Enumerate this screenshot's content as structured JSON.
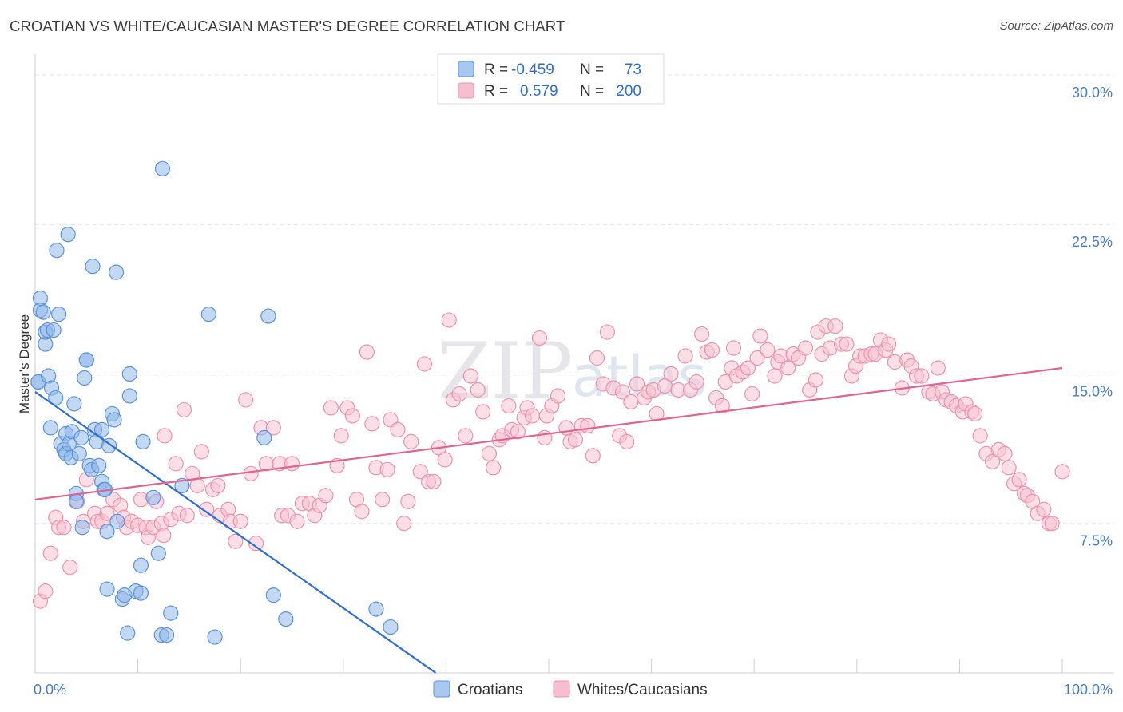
{
  "title": "CROATIAN VS WHITE/CAUCASIAN MASTER'S DEGREE CORRELATION CHART",
  "source": "Source: ZipAtlas.com",
  "watermark": {
    "zip": "ZIP",
    "atlas": "atlas"
  },
  "chart_data": {
    "type": "scatter",
    "title": "CROATIAN VS WHITE/CAUCASIAN MASTER'S DEGREE CORRELATION CHART",
    "ylabel": "Master's Degree",
    "xlabel": "",
    "xlim": [
      0,
      100
    ],
    "ylim": [
      0,
      30.6
    ],
    "x_tick_labels": {
      "left": "0.0%",
      "right": "100.0%"
    },
    "y_ticks": [
      {
        "value": 7.5,
        "label": "7.5%"
      },
      {
        "value": 15.0,
        "label": "15.0%"
      },
      {
        "value": 22.5,
        "label": "22.5%"
      },
      {
        "value": 30.0,
        "label": "30.0%"
      }
    ],
    "legend": {
      "placement": "top-center",
      "rows": [
        {
          "r_label": "R =",
          "r_value": "-0.459",
          "n_label": "N =",
          "n_value": "73",
          "color": "#a9c8f0"
        },
        {
          "r_label": "R =",
          "r_value": "0.579",
          "n_label": "N =",
          "n_value": "200",
          "color": "#f6bfd0"
        }
      ]
    },
    "series": [
      {
        "name": "Croatians",
        "color": "#8fb8ea",
        "edge": "#5d93da",
        "trend": {
          "x": [
            0,
            39
          ],
          "y": [
            14.1,
            0
          ],
          "color": "#2f6fd0"
        },
        "points": [
          [
            0.3,
            14.6
          ],
          [
            0.3,
            14.6
          ],
          [
            0.5,
            18.8
          ],
          [
            0.5,
            18.2
          ],
          [
            0.8,
            18.1
          ],
          [
            1,
            16.5
          ],
          [
            1,
            17.1
          ],
          [
            1.2,
            17.2
          ],
          [
            1.3,
            14.9
          ],
          [
            1.5,
            12.3
          ],
          [
            1.6,
            14.3
          ],
          [
            1.8,
            17.2
          ],
          [
            2,
            13.8
          ],
          [
            2.3,
            18
          ],
          [
            2.5,
            11.5
          ],
          [
            2.8,
            11.2
          ],
          [
            3,
            11.0
          ],
          [
            3,
            12.0
          ],
          [
            3.3,
            11.5
          ],
          [
            3.5,
            10.8
          ],
          [
            3.6,
            12.1
          ],
          [
            3.8,
            13.5
          ],
          [
            4,
            9.0
          ],
          [
            4,
            8.6
          ],
          [
            4.3,
            11.0
          ],
          [
            4.5,
            11.8
          ],
          [
            4.8,
            14.8
          ],
          [
            5,
            15.7
          ],
          [
            5.3,
            10.4
          ],
          [
            5.5,
            10.2
          ],
          [
            5.8,
            12.2
          ],
          [
            6,
            11.6
          ],
          [
            6.2,
            10.4
          ],
          [
            6.5,
            9.6
          ],
          [
            6.7,
            9.2
          ],
          [
            6.8,
            9.2
          ],
          [
            6.5,
            12.2
          ],
          [
            7,
            7.1
          ],
          [
            7.2,
            11.4
          ],
          [
            7.5,
            13.0
          ],
          [
            7.7,
            12.7
          ],
          [
            8,
            7.6
          ],
          [
            8.5,
            3.7
          ],
          [
            8.7,
            3.9
          ],
          [
            9,
            2.0
          ],
          [
            9.2,
            15.0
          ],
          [
            9.2,
            13.9
          ],
          [
            9.8,
            4.1
          ],
          [
            10.3,
            4.0
          ],
          [
            10.5,
            11.6
          ],
          [
            10.3,
            5.4
          ],
          [
            11.5,
            8.8
          ],
          [
            12,
            6.0
          ],
          [
            12.3,
            1.9
          ],
          [
            12.8,
            1.9
          ],
          [
            13.2,
            3.0
          ],
          [
            14.3,
            9.4
          ],
          [
            3.2,
            22.0
          ],
          [
            2.1,
            21.2
          ],
          [
            5.6,
            20.4
          ],
          [
            7.9,
            20.1
          ],
          [
            12.4,
            25.3
          ],
          [
            16.9,
            18.0
          ],
          [
            17.5,
            1.8
          ],
          [
            22.3,
            11.8
          ],
          [
            22.7,
            17.9
          ],
          [
            23.2,
            3.9
          ],
          [
            24.4,
            2.7
          ],
          [
            33.2,
            3.2
          ],
          [
            34.6,
            2.3
          ],
          [
            4.6,
            7.3
          ],
          [
            7.0,
            4.2
          ],
          [
            5,
            15.7
          ]
        ]
      },
      {
        "name": "Whites/Caucasians",
        "color": "#f7c2d1",
        "edge": "#ee93ae",
        "trend": {
          "x": [
            0,
            100
          ],
          "y": [
            8.7,
            15.3
          ],
          "color": "#e0648e"
        },
        "points": [
          [
            0.5,
            3.6
          ],
          [
            1,
            4.1
          ],
          [
            1.5,
            6.0
          ],
          [
            2,
            7.8
          ],
          [
            2.3,
            7.3
          ],
          [
            2.8,
            7.3
          ],
          [
            3.4,
            5.3
          ],
          [
            4.1,
            8.6
          ],
          [
            4.7,
            7.6
          ],
          [
            5,
            9.7
          ],
          [
            5.8,
            8.0
          ],
          [
            6.1,
            7.6
          ],
          [
            6.5,
            7.6
          ],
          [
            7,
            8.0
          ],
          [
            7.6,
            8.7
          ],
          [
            8.3,
            8.4
          ],
          [
            8.6,
            7.8
          ],
          [
            8.9,
            7.3
          ],
          [
            9.4,
            7.6
          ],
          [
            10,
            7.4
          ],
          [
            10.3,
            8.7
          ],
          [
            10.8,
            7.3
          ],
          [
            11,
            6.8
          ],
          [
            11.5,
            7.3
          ],
          [
            11.8,
            8.6
          ],
          [
            12.3,
            7.5
          ],
          [
            12.5,
            6.9
          ],
          [
            12.6,
            11.9
          ],
          [
            13.2,
            7.7
          ],
          [
            13.7,
            10.5
          ],
          [
            14,
            8.0
          ],
          [
            14.5,
            13.2
          ],
          [
            14.8,
            7.9
          ],
          [
            15.3,
            10.0
          ],
          [
            15.8,
            9.4
          ],
          [
            16.2,
            11.1
          ],
          [
            16.7,
            8.2
          ],
          [
            17.3,
            9.2
          ],
          [
            17.8,
            9.4
          ],
          [
            18,
            7.9
          ],
          [
            18.8,
            8.2
          ],
          [
            19,
            7.6
          ],
          [
            19.5,
            6.6
          ],
          [
            20,
            7.6
          ],
          [
            20.5,
            13.7
          ],
          [
            21,
            10.0
          ],
          [
            21.5,
            6.5
          ],
          [
            22,
            12.3
          ],
          [
            22.5,
            10.5
          ],
          [
            23.2,
            12.3
          ],
          [
            23.8,
            10.5
          ],
          [
            24,
            7.9
          ],
          [
            24.6,
            7.9
          ],
          [
            25,
            10.5
          ],
          [
            25.5,
            7.6
          ],
          [
            26,
            8.5
          ],
          [
            26.7,
            8.5
          ],
          [
            27.2,
            7.9
          ],
          [
            27.7,
            8.4
          ],
          [
            28.3,
            8.9
          ],
          [
            28.8,
            13.3
          ],
          [
            29.4,
            10.4
          ],
          [
            29.8,
            11.9
          ],
          [
            30.4,
            13.3
          ],
          [
            30.9,
            12.9
          ],
          [
            31.3,
            8.7
          ],
          [
            31.8,
            8.1
          ],
          [
            32.3,
            16.1
          ],
          [
            32.8,
            12.5
          ],
          [
            33.2,
            10.3
          ],
          [
            33.8,
            8.7
          ],
          [
            34.3,
            10.2
          ],
          [
            34.6,
            12.7
          ],
          [
            35.3,
            12.2
          ],
          [
            35.9,
            7.5
          ],
          [
            36.3,
            8.6
          ],
          [
            36.6,
            11.6
          ],
          [
            37.5,
            10.1
          ],
          [
            37.9,
            15.5
          ],
          [
            38.3,
            9.6
          ],
          [
            38.8,
            9.6
          ],
          [
            39.3,
            11.3
          ],
          [
            39.9,
            10.7
          ],
          [
            40.3,
            17.7
          ],
          [
            40.7,
            13.7
          ],
          [
            41.3,
            14.0
          ],
          [
            41.9,
            11.9
          ],
          [
            42.4,
            14.9
          ],
          [
            43.1,
            14.2
          ],
          [
            43.6,
            13.1
          ],
          [
            44.2,
            11.0
          ],
          [
            44.6,
            10.3
          ],
          [
            45.2,
            11.7
          ],
          [
            45.5,
            11.9
          ],
          [
            46.1,
            13.4
          ],
          [
            46.4,
            12.2
          ],
          [
            47,
            12.1
          ],
          [
            47.6,
            12.8
          ],
          [
            47.9,
            13.3
          ],
          [
            48.4,
            12.9
          ],
          [
            49.1,
            16.8
          ],
          [
            49.6,
            11.8
          ],
          [
            49.8,
            12.9
          ],
          [
            50.3,
            13.4
          ],
          [
            50.9,
            13.9
          ],
          [
            51.7,
            12.3
          ],
          [
            52.1,
            11.6
          ],
          [
            52.6,
            11.7
          ],
          [
            53.2,
            12.4
          ],
          [
            53.8,
            12.4
          ],
          [
            54.3,
            10.9
          ],
          [
            54.7,
            15.8
          ],
          [
            55.3,
            14.5
          ],
          [
            55.7,
            17.1
          ],
          [
            56.3,
            14.3
          ],
          [
            56.9,
            11.9
          ],
          [
            57.2,
            14.1
          ],
          [
            57.6,
            11.6
          ],
          [
            58,
            13.6
          ],
          [
            58.6,
            14.5
          ],
          [
            59.3,
            13.8
          ],
          [
            59.7,
            14.1
          ],
          [
            60.2,
            14.2
          ],
          [
            60.5,
            13.0
          ],
          [
            61.3,
            14.4
          ],
          [
            61.9,
            15.0
          ],
          [
            62.6,
            14.2
          ],
          [
            63.3,
            15.9
          ],
          [
            63.8,
            14.2
          ],
          [
            64.4,
            14.6
          ],
          [
            64.9,
            17.0
          ],
          [
            65.4,
            16.1
          ],
          [
            65.9,
            16.2
          ],
          [
            66.3,
            13.8
          ],
          [
            66.9,
            13.4
          ],
          [
            67.2,
            14.6
          ],
          [
            67.8,
            15.3
          ],
          [
            68,
            16.3
          ],
          [
            68.3,
            14.9
          ],
          [
            68.9,
            15.1
          ],
          [
            69.4,
            15.3
          ],
          [
            69.8,
            14.0
          ],
          [
            70.3,
            15.8
          ],
          [
            70.6,
            16.9
          ],
          [
            71.3,
            16.2
          ],
          [
            72,
            14.9
          ],
          [
            72.3,
            15.6
          ],
          [
            72.6,
            15.9
          ],
          [
            73.3,
            15.3
          ],
          [
            73.8,
            16.0
          ],
          [
            74.3,
            15.8
          ],
          [
            75,
            16.3
          ],
          [
            75.4,
            14.2
          ],
          [
            76,
            14.7
          ],
          [
            76.2,
            17.1
          ],
          [
            76.6,
            16.0
          ],
          [
            77,
            17.4
          ],
          [
            77.4,
            16.3
          ],
          [
            77.9,
            17.4
          ],
          [
            78.5,
            16.5
          ],
          [
            79,
            16.5
          ],
          [
            79.5,
            14.9
          ],
          [
            79.9,
            15.4
          ],
          [
            80.3,
            15.9
          ],
          [
            80.8,
            15.9
          ],
          [
            81.4,
            16.0
          ],
          [
            81.8,
            16.0
          ],
          [
            82.3,
            16.7
          ],
          [
            82.8,
            16.2
          ],
          [
            83.1,
            16.5
          ],
          [
            83.7,
            15.6
          ],
          [
            84.4,
            14.3
          ],
          [
            84.9,
            15.7
          ],
          [
            85.3,
            15.4
          ],
          [
            85.8,
            14.9
          ],
          [
            86.3,
            14.9
          ],
          [
            87,
            14.1
          ],
          [
            87.4,
            14.0
          ],
          [
            87.9,
            15.3
          ],
          [
            88.3,
            14.1
          ],
          [
            88.7,
            13.7
          ],
          [
            89.2,
            13.6
          ],
          [
            89.7,
            13.4
          ],
          [
            90.3,
            13.1
          ],
          [
            90.6,
            13.5
          ],
          [
            91.2,
            13.1
          ],
          [
            91.5,
            13.0
          ],
          [
            92,
            11.9
          ],
          [
            92.6,
            11.0
          ],
          [
            93.2,
            10.6
          ],
          [
            93.8,
            11.2
          ],
          [
            94.4,
            11.0
          ],
          [
            94.8,
            10.3
          ],
          [
            95.3,
            9.5
          ],
          [
            95.8,
            9.7
          ],
          [
            96.3,
            9.0
          ],
          [
            96.6,
            8.9
          ],
          [
            97.1,
            8.6
          ],
          [
            97.6,
            8.0
          ],
          [
            98.2,
            8.2
          ],
          [
            98.7,
            7.5
          ],
          [
            99,
            7.5
          ],
          [
            100,
            10.1
          ]
        ]
      }
    ]
  }
}
